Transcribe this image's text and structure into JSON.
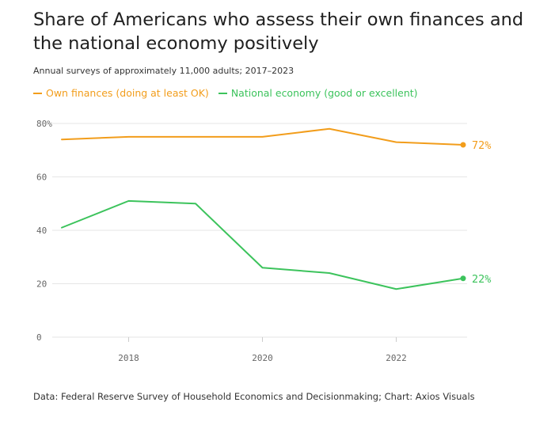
{
  "chart_data": {
    "type": "line",
    "title": "Share of Americans who assess their own finances and the national economy positively",
    "subtitle": "Annual surveys of approximately 11,000 adults; 2017–2023",
    "x": [
      2017,
      2018,
      2019,
      2020,
      2021,
      2022,
      2023
    ],
    "series": [
      {
        "name": "Own finances (doing at least OK)",
        "color": "#F29D1B",
        "values": [
          74,
          75,
          75,
          75,
          78,
          73,
          72
        ],
        "end_label": "72%"
      },
      {
        "name": "National economy (good or excellent)",
        "color": "#3CC35C",
        "values": [
          41,
          51,
          50,
          26,
          24,
          18,
          22
        ],
        "end_label": "22%"
      }
    ],
    "xlim": [
      2017,
      2023
    ],
    "ylim": [
      0,
      80
    ],
    "x_ticks": [
      2018,
      2020,
      2022
    ],
    "y_ticks": [
      0,
      20,
      40,
      60,
      80
    ],
    "y_tick_labels": [
      "0",
      "20",
      "40",
      "60",
      "80%"
    ],
    "grid": true,
    "legend_placement": "top-left"
  },
  "source": "Data: Federal Reserve Survey of Household Economics and Decisionmaking; Chart: Axios Visuals"
}
